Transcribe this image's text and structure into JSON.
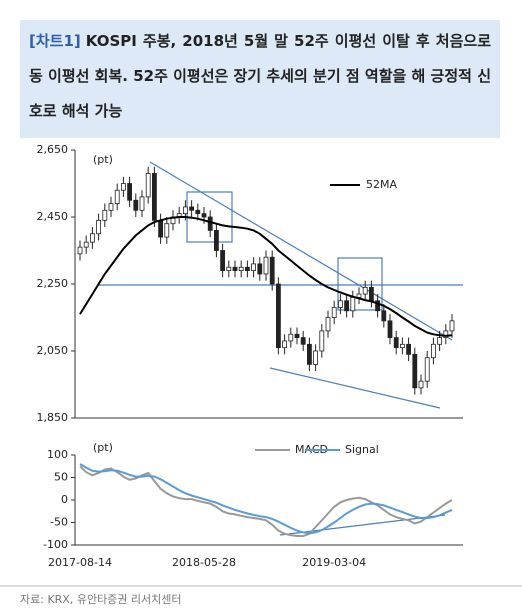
{
  "header": {
    "label": "[차트1]",
    "title": "KOSPI 주봉, 2018년 5월 말 52주 이평선 이탈 후 처음으로 동 이평선 회복. 52주 이평선은 장기 추세의 분기 점 역할을 해 긍정적 신호로 해석 가능"
  },
  "chart_data": [
    {
      "type": "candlestick",
      "unit_label": "(pt)",
      "open": [
        2340,
        2360,
        2375,
        2400,
        2440,
        2470,
        2490,
        2530,
        2550,
        2500,
        2470,
        2510,
        2580,
        2440,
        2390,
        2430,
        2450,
        2460,
        2480,
        2470,
        2460,
        2450,
        2410,
        2350,
        2290,
        2300,
        2290,
        2300,
        2290,
        2310,
        2280,
        2330,
        2250,
        2060,
        2080,
        2100,
        2090,
        2070,
        2010,
        2050,
        2110,
        2150,
        2180,
        2200,
        2170,
        2210,
        2220,
        2240,
        2200,
        2170,
        2140,
        2090,
        2060,
        2070,
        2040,
        1940,
        1960,
        2030,
        2070,
        2090,
        2110
      ],
      "high": [
        2380,
        2395,
        2420,
        2460,
        2490,
        2510,
        2550,
        2570,
        2570,
        2520,
        2530,
        2600,
        2600,
        2460,
        2450,
        2470,
        2480,
        2500,
        2500,
        2490,
        2480,
        2470,
        2430,
        2370,
        2320,
        2320,
        2320,
        2320,
        2330,
        2330,
        2350,
        2350,
        2270,
        2100,
        2120,
        2120,
        2110,
        2090,
        2070,
        2130,
        2170,
        2200,
        2220,
        2220,
        2230,
        2240,
        2260,
        2260,
        2220,
        2190,
        2160,
        2110,
        2090,
        2090,
        2060,
        1980,
        2050,
        2090,
        2110,
        2130,
        2160
      ],
      "low": [
        2320,
        2340,
        2355,
        2380,
        2420,
        2450,
        2470,
        2510,
        2480,
        2450,
        2450,
        2490,
        2420,
        2370,
        2370,
        2410,
        2430,
        2440,
        2450,
        2440,
        2430,
        2390,
        2330,
        2270,
        2270,
        2270,
        2270,
        2270,
        2270,
        2260,
        2260,
        2230,
        2040,
        2040,
        2060,
        2070,
        2050,
        1990,
        1990,
        2030,
        2090,
        2130,
        2160,
        2150,
        2150,
        2190,
        2200,
        2180,
        2150,
        2120,
        2070,
        2040,
        2040,
        2020,
        1920,
        1920,
        1940,
        2010,
        2050,
        2070,
        2090
      ],
      "close": [
        2360,
        2375,
        2400,
        2440,
        2470,
        2490,
        2530,
        2550,
        2500,
        2470,
        2510,
        2580,
        2440,
        2390,
        2430,
        2450,
        2460,
        2480,
        2470,
        2460,
        2450,
        2410,
        2350,
        2290,
        2300,
        2290,
        2300,
        2290,
        2310,
        2280,
        2330,
        2250,
        2060,
        2080,
        2100,
        2090,
        2070,
        2010,
        2050,
        2110,
        2150,
        2180,
        2200,
        2170,
        2210,
        2220,
        2240,
        2200,
        2170,
        2140,
        2090,
        2060,
        2070,
        2040,
        1940,
        1960,
        2030,
        2070,
        2090,
        2110,
        2140
      ],
      "series": [
        {
          "name": "52MA",
          "color": "#000000",
          "values": [
            2160,
            2190,
            2220,
            2250,
            2280,
            2305,
            2330,
            2355,
            2375,
            2395,
            2410,
            2425,
            2435,
            2440,
            2445,
            2448,
            2450,
            2450,
            2448,
            2445,
            2440,
            2435,
            2430,
            2425,
            2422,
            2420,
            2418,
            2415,
            2410,
            2400,
            2385,
            2370,
            2350,
            2335,
            2320,
            2305,
            2290,
            2275,
            2262,
            2250,
            2240,
            2232,
            2225,
            2218,
            2212,
            2207,
            2202,
            2198,
            2192,
            2185,
            2175,
            2163,
            2150,
            2138,
            2125,
            2115,
            2105,
            2100,
            2097,
            2095,
            2097
          ]
        }
      ],
      "ylim": [
        1850,
        2650
      ],
      "yticks": [
        {
          "value": 1850,
          "label": "1,850"
        },
        {
          "value": 2050,
          "label": "2,050"
        },
        {
          "value": 2250,
          "label": "2,250"
        },
        {
          "value": 2450,
          "label": "2,450"
        },
        {
          "value": 2650,
          "label": "2,650"
        }
      ]
    },
    {
      "type": "line",
      "unit_label": "(pt)",
      "categories": [
        "2017-08-14",
        null,
        null,
        null,
        null,
        null,
        null,
        null,
        null,
        null,
        null,
        null,
        null,
        null,
        null,
        null,
        null,
        null,
        null,
        null,
        "2018-05-28",
        null,
        null,
        null,
        null,
        null,
        null,
        null,
        null,
        null,
        null,
        null,
        null,
        null,
        null,
        null,
        null,
        null,
        null,
        null,
        null,
        "2019-03-04",
        null,
        null,
        null,
        null,
        null,
        null,
        null,
        null,
        null,
        null,
        null,
        null,
        null,
        null,
        null,
        null,
        null,
        null,
        null
      ],
      "series": [
        {
          "name": "MACD",
          "color": "#999999",
          "values": [
            75,
            62,
            55,
            60,
            68,
            70,
            62,
            52,
            45,
            48,
            55,
            60,
            42,
            25,
            15,
            8,
            4,
            2,
            2,
            -2,
            -5,
            -8,
            -15,
            -25,
            -30,
            -32,
            -35,
            -38,
            -40,
            -42,
            -45,
            -55,
            -68,
            -75,
            -78,
            -80,
            -80,
            -75,
            -60,
            -45,
            -30,
            -15,
            -5,
            0,
            3,
            5,
            2,
            -5,
            -12,
            -22,
            -32,
            -38,
            -42,
            -45,
            -52,
            -48,
            -38,
            -28,
            -18,
            -8,
            0
          ]
        },
        {
          "name": "Signal",
          "color": "#5b9bd5",
          "values": [
            80,
            72,
            65,
            63,
            64,
            66,
            65,
            61,
            56,
            52,
            52,
            54,
            52,
            46,
            38,
            30,
            22,
            15,
            10,
            6,
            2,
            -2,
            -6,
            -12,
            -17,
            -22,
            -26,
            -30,
            -33,
            -36,
            -38,
            -42,
            -48,
            -55,
            -62,
            -68,
            -72,
            -74,
            -72,
            -67,
            -59,
            -50,
            -40,
            -30,
            -22,
            -15,
            -10,
            -8,
            -9,
            -12,
            -17,
            -22,
            -27,
            -32,
            -37,
            -40,
            -40,
            -38,
            -34,
            -28,
            -22
          ]
        }
      ],
      "ylim": [
        -100,
        100
      ],
      "yticks": [
        -100,
        -50,
        0,
        50,
        100
      ]
    }
  ],
  "source": "자료: KRX, 유안타증권 리서치센터"
}
